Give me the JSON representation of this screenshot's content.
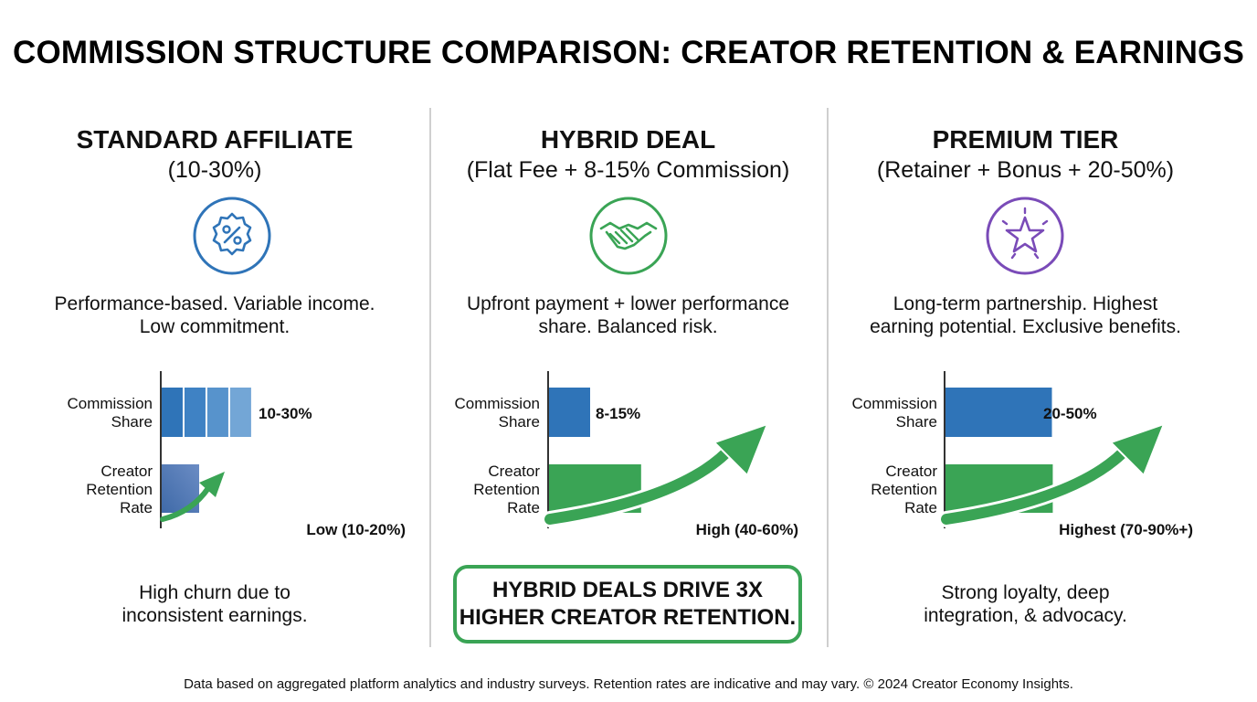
{
  "title": "COMMISSION STRUCTURE COMPARISON: CREATOR RETENTION & EARNINGS",
  "colors": {
    "blue": "#2f74b8",
    "green": "#3aa455",
    "purple": "#7a4bb8"
  },
  "tiers": [
    {
      "name": "STANDARD AFFILIATE",
      "subtitle": "(10-30%)",
      "icon": "percent-badge-icon",
      "description_lines": [
        "Performance-based. Variable income.",
        "Low commitment."
      ],
      "footnote_lines": [
        "High churn due to",
        "inconsistent earnings."
      ]
    },
    {
      "name": "HYBRID DEAL",
      "subtitle": "(Flat Fee + 8-15% Commission)",
      "icon": "handshake-icon",
      "description_lines": [
        "Upfront payment + lower performance",
        "share. Balanced risk."
      ],
      "callout_lines": [
        "HYBRID DEALS DRIVE 3X",
        "HIGHER CREATOR RETENTION."
      ]
    },
    {
      "name": "PREMIUM TIER",
      "subtitle": "(Retainer + Bonus + 20-50%)",
      "icon": "star-icon",
      "description_lines": [
        "Long-term partnership. Highest",
        "earning potential. Exclusive benefits."
      ],
      "footnote_lines": [
        "Strong loyalty, deep",
        "integration, & advocacy."
      ]
    }
  ],
  "chart_data": [
    {
      "type": "bar",
      "orientation": "horizontal",
      "categories": [
        [
          "Commission",
          "Share"
        ],
        [
          "Creator",
          "Retention",
          "Rate"
        ]
      ],
      "series": [
        {
          "values": [
            [
              10,
              30
            ],
            [
              10,
              20
            ]
          ]
        }
      ],
      "data_labels": [
        "10-30%",
        "Low (10-20%)"
      ],
      "xlim": [
        0,
        100
      ],
      "bar_colors": [
        "#2f74b8",
        "#4a72b0"
      ],
      "trend_arrow": "small-up"
    },
    {
      "type": "bar",
      "orientation": "horizontal",
      "categories": [
        [
          "Commission",
          "Share"
        ],
        [
          "Creator",
          "Retention",
          "Rate"
        ]
      ],
      "series": [
        {
          "values": [
            [
              8,
              15
            ],
            [
              40,
              60
            ]
          ]
        }
      ],
      "data_labels": [
        "8-15%",
        "High (40-60%)"
      ],
      "xlim": [
        0,
        100
      ],
      "bar_colors": [
        "#2f74b8",
        "#3aa455"
      ],
      "trend_arrow": "large-up"
    },
    {
      "type": "bar",
      "orientation": "horizontal",
      "categories": [
        [
          "Commission",
          "Share"
        ],
        [
          "Creator",
          "Retention",
          "Rate"
        ]
      ],
      "series": [
        {
          "values": [
            [
              20,
              50
            ],
            [
              70,
              90
            ]
          ]
        }
      ],
      "data_labels": [
        "20-50%",
        "Highest (70-90%+)"
      ],
      "xlim": [
        0,
        100
      ],
      "bar_colors": [
        "#2f74b8",
        "#3aa455"
      ],
      "trend_arrow": "large-up"
    }
  ],
  "footer": "Data based on aggregated platform analytics and industry surveys. Retention rates are indicative and may vary. © 2024 Creator Economy Insights."
}
